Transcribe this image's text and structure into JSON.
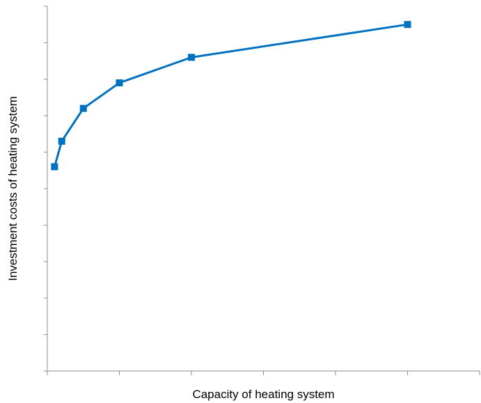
{
  "chart_data": {
    "type": "line",
    "xlabel": "Capacity of heating system",
    "ylabel": "Investment costs of heating system",
    "xlim": [
      0,
      12
    ],
    "ylim": [
      0,
      10
    ],
    "x_tick_count": 7,
    "y_tick_count": 11,
    "grid": false,
    "legend": "none",
    "tick_labels_shown": false,
    "series": [
      {
        "color": "#0070c0",
        "marker": "square",
        "x": [
          0.2,
          0.4,
          1.0,
          2.0,
          4.0,
          10.0
        ],
        "y": [
          5.6,
          6.3,
          7.2,
          7.9,
          8.6,
          9.5
        ]
      }
    ]
  }
}
